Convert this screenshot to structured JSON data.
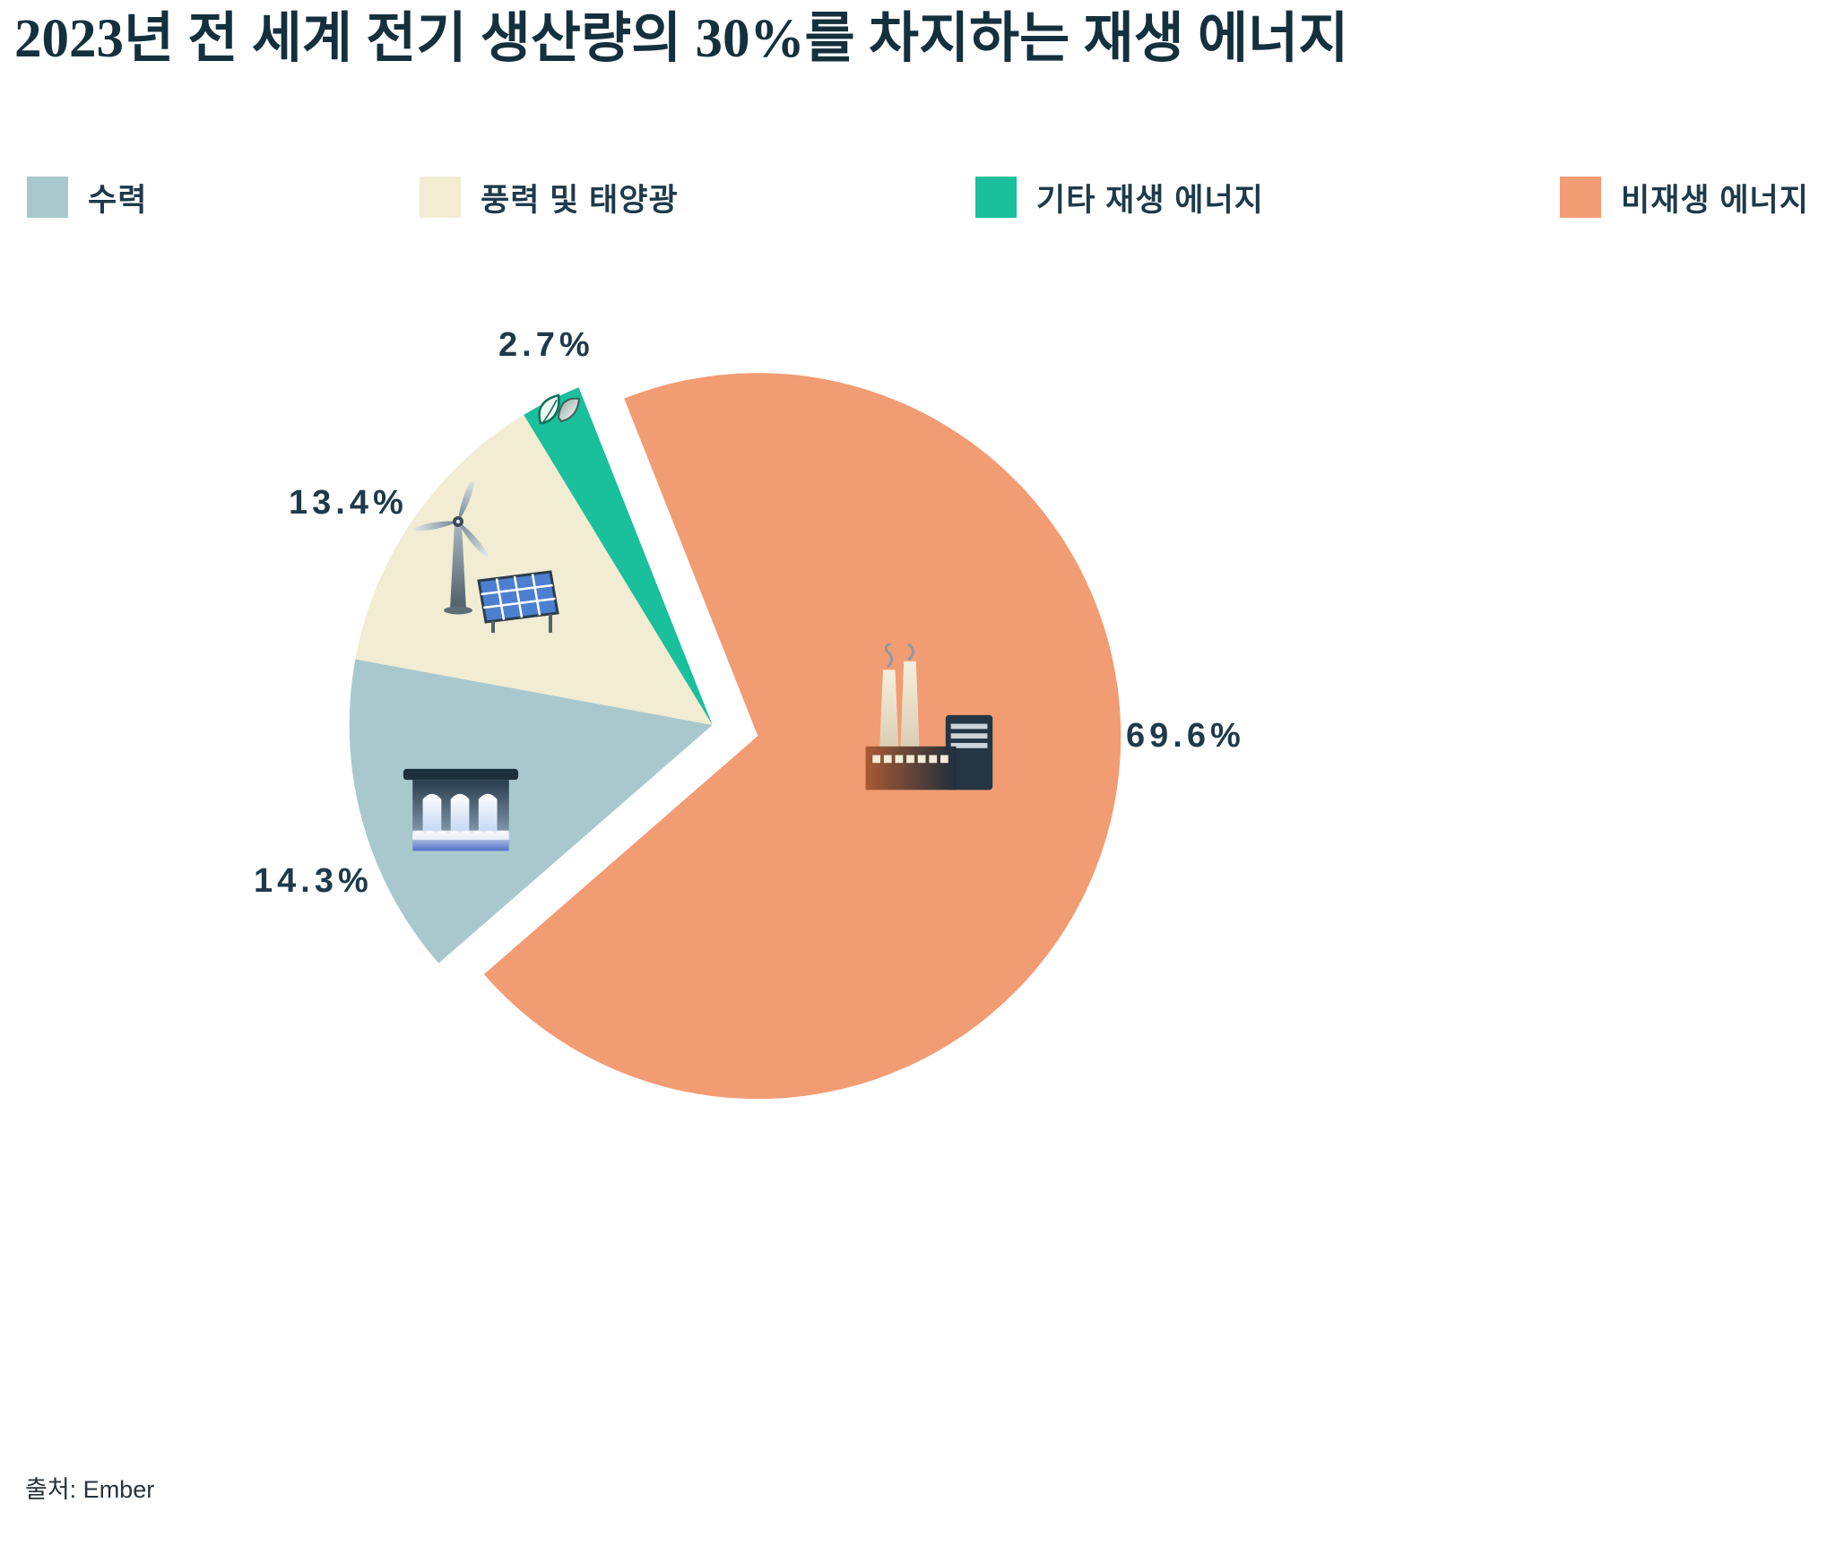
{
  "title": "2023년 전 세계 전기 생산량의 30%를 차지하는 재생 에너지",
  "source": "출처: Ember",
  "legend": [
    {
      "label": "수력",
      "color": "#a9c8ce"
    },
    {
      "label": "풍력 및 태양광",
      "color": "#f1ecd2"
    },
    {
      "label": "기타 재생 에너지",
      "color": "#1abf9b"
    },
    {
      "label": "비재생 에너지",
      "color": "#f29c74"
    }
  ],
  "chart_data": {
    "type": "pie",
    "title": "2023년 전 세계 전기 생산량의 30%를 차지하는 재생 에너지",
    "unit": "%",
    "legend_position": "top",
    "clockwise": true,
    "start_angle_deg": -21.6,
    "slices": [
      {
        "key": "nonrenewable",
        "label": "비재생 에너지",
        "value": 69.6,
        "pct_label": "69.6%",
        "color": "#f29c74",
        "group": "nonrenewable"
      },
      {
        "key": "hydro",
        "label": "수력",
        "value": 14.3,
        "pct_label": "14.3%",
        "color": "#a9c8ce",
        "group": "renewable"
      },
      {
        "key": "wind-solar",
        "label": "풍력 및 태양광",
        "value": 13.4,
        "pct_label": "13.4%",
        "color": "#f1ecd2",
        "group": "renewable"
      },
      {
        "key": "other-renewable",
        "label": "기타 재생 에너지",
        "value": 2.7,
        "pct_label": "2.7%",
        "color": "#1abf9b",
        "group": "renewable"
      }
    ]
  }
}
